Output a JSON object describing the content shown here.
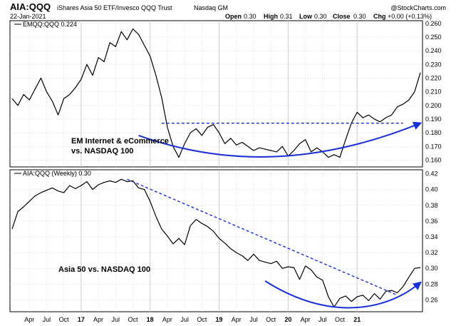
{
  "header": {
    "symbol": "AIA:QQQ",
    "description": "iShares Asia 50 ETF/Invesco QQQ Trust",
    "exchange": "Nasdaq GM",
    "date": "22-Jan-2021",
    "open_label": "Open",
    "open_value": "0.30",
    "high_label": "High",
    "high_value": "0.31",
    "low_label": "Low",
    "low_value": "0.30",
    "close_label": "Close",
    "close_value": "0.30",
    "chg_label": "Chg",
    "chg_value": "+0.00 (+0.13%)",
    "watermark": "@StockCharts.com"
  },
  "colors": {
    "price_line": "#000000",
    "annotation": "#1a2fd6",
    "grid": "#c8c8c8",
    "frame": "#000000"
  },
  "chart_data": [
    {
      "type": "line",
      "legend": "EMQQ:QQQ 0.224",
      "annotation": [
        "EM Internet & eCommerce",
        "vs. NASDAQ 100"
      ],
      "ylim": [
        0.155,
        0.262
      ],
      "yticks": [
        "0.160",
        "0.170",
        "0.180",
        "0.190",
        "0.200",
        "0.210",
        "0.220",
        "0.230",
        "0.240",
        "0.250",
        "0.260"
      ],
      "x_months": [
        0,
        71
      ],
      "series": [
        {
          "x": [
            0,
            1,
            2,
            3,
            4,
            5,
            6,
            7,
            8,
            9,
            10,
            11,
            12,
            13,
            14,
            15,
            16,
            17,
            18,
            19,
            20,
            21,
            22,
            23,
            24,
            25,
            26,
            27,
            28,
            29,
            30,
            31,
            32,
            33,
            34,
            35,
            36,
            37,
            38,
            39,
            40,
            41,
            42,
            43,
            44,
            45,
            46,
            47,
            48,
            49,
            50,
            51,
            52,
            53,
            54,
            55,
            56,
            57,
            58,
            59,
            60,
            61,
            62,
            63,
            64,
            65,
            66,
            67,
            68,
            69,
            70,
            71
          ],
          "y": [
            0.205,
            0.2,
            0.208,
            0.204,
            0.212,
            0.22,
            0.21,
            0.203,
            0.193,
            0.205,
            0.208,
            0.213,
            0.219,
            0.23,
            0.222,
            0.235,
            0.232,
            0.246,
            0.243,
            0.254,
            0.248,
            0.256,
            0.252,
            0.244,
            0.236,
            0.222,
            0.206,
            0.184,
            0.17,
            0.162,
            0.172,
            0.18,
            0.183,
            0.178,
            0.184,
            0.186,
            0.18,
            0.172,
            0.176,
            0.171,
            0.173,
            0.17,
            0.167,
            0.169,
            0.168,
            0.167,
            0.166,
            0.17,
            0.163,
            0.167,
            0.172,
            0.175,
            0.166,
            0.169,
            0.166,
            0.162,
            0.164,
            0.162,
            0.175,
            0.187,
            0.195,
            0.191,
            0.193,
            0.19,
            0.188,
            0.191,
            0.193,
            0.199,
            0.201,
            0.204,
            0.21,
            0.224
          ]
        }
      ],
      "trendlines": [
        {
          "style": "dashed",
          "x": [
            26,
            68
          ],
          "y": [
            0.187,
            0.187
          ]
        }
      ],
      "arcs": [
        {
          "style": "solid-arrow",
          "x": [
            22,
            38,
            54,
            71
          ],
          "y": [
            0.178,
            0.154,
            0.158,
            0.187
          ]
        }
      ]
    },
    {
      "type": "line",
      "legend": "AIA:QQQ (Weekly) 0.30",
      "annotation": [
        "Asia 50 vs. NASDAQ 100"
      ],
      "ylim": [
        0.245,
        0.425
      ],
      "yticks": [
        "0.26",
        "0.28",
        "0.30",
        "0.32",
        "0.34",
        "0.36",
        "0.38",
        "0.40",
        "0.42"
      ],
      "x_months": [
        0,
        71
      ],
      "series": [
        {
          "x": [
            0,
            1,
            2,
            3,
            4,
            5,
            6,
            7,
            8,
            9,
            10,
            11,
            12,
            13,
            14,
            15,
            16,
            17,
            18,
            19,
            20,
            21,
            22,
            23,
            24,
            25,
            26,
            27,
            28,
            29,
            30,
            31,
            32,
            33,
            34,
            35,
            36,
            37,
            38,
            39,
            40,
            41,
            42,
            43,
            44,
            45,
            46,
            47,
            48,
            49,
            50,
            51,
            52,
            53,
            54,
            55,
            56,
            57,
            58,
            59,
            60,
            61,
            62,
            63,
            64,
            65,
            66,
            67,
            68,
            69,
            70,
            71
          ],
          "y": [
            0.35,
            0.372,
            0.378,
            0.385,
            0.392,
            0.396,
            0.399,
            0.402,
            0.398,
            0.396,
            0.405,
            0.401,
            0.405,
            0.41,
            0.4,
            0.406,
            0.409,
            0.411,
            0.409,
            0.413,
            0.41,
            0.411,
            0.402,
            0.4,
            0.385,
            0.366,
            0.35,
            0.341,
            0.331,
            0.338,
            0.33,
            0.354,
            0.362,
            0.357,
            0.353,
            0.347,
            0.338,
            0.332,
            0.325,
            0.32,
            0.316,
            0.31,
            0.318,
            0.31,
            0.308,
            0.306,
            0.309,
            0.3,
            0.302,
            0.301,
            0.286,
            0.303,
            0.298,
            0.289,
            0.285,
            0.264,
            0.251,
            0.262,
            0.265,
            0.258,
            0.264,
            0.266,
            0.259,
            0.268,
            0.261,
            0.271,
            0.272,
            0.269,
            0.277,
            0.289,
            0.3,
            0.301
          ]
        }
      ],
      "trendlines": [
        {
          "style": "dashed",
          "x": [
            20,
            67
          ],
          "y": [
            0.413,
            0.266
          ]
        }
      ],
      "arcs": [
        {
          "style": "solid-arrow",
          "x": [
            44,
            54,
            64,
            71
          ],
          "y": [
            0.284,
            0.238,
            0.24,
            0.282
          ]
        }
      ]
    }
  ],
  "x_axis": {
    "ticks": [
      {
        "month": 3,
        "label": "Apr",
        "major": false
      },
      {
        "month": 6,
        "label": "Jul",
        "major": false
      },
      {
        "month": 9,
        "label": "Oct",
        "major": false
      },
      {
        "month": 12,
        "label": "17",
        "major": true
      },
      {
        "month": 15,
        "label": "Apr",
        "major": false
      },
      {
        "month": 18,
        "label": "Jul",
        "major": false
      },
      {
        "month": 21,
        "label": "Oct",
        "major": false
      },
      {
        "month": 24,
        "label": "18",
        "major": true
      },
      {
        "month": 27,
        "label": "Apr",
        "major": false
      },
      {
        "month": 30,
        "label": "Jul",
        "major": false
      },
      {
        "month": 33,
        "label": "Oct",
        "major": false
      },
      {
        "month": 36,
        "label": "19",
        "major": true
      },
      {
        "month": 39,
        "label": "Apr",
        "major": false
      },
      {
        "month": 42,
        "label": "Jul",
        "major": false
      },
      {
        "month": 45,
        "label": "Oct",
        "major": false
      },
      {
        "month": 48,
        "label": "20",
        "major": true
      },
      {
        "month": 51,
        "label": "Apr",
        "major": false
      },
      {
        "month": 54,
        "label": "Jul",
        "major": false
      },
      {
        "month": 57,
        "label": "Oct",
        "major": false
      },
      {
        "month": 60,
        "label": "21",
        "major": true
      }
    ]
  }
}
